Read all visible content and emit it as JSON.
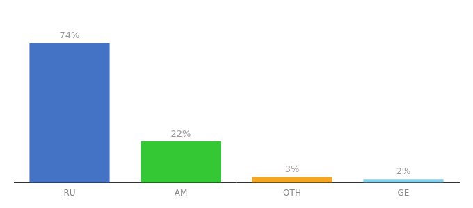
{
  "chart_data": {
    "type": "bar",
    "categories": [
      "RU",
      "AM",
      "OTH",
      "GE"
    ],
    "values": [
      74,
      22,
      3,
      2
    ],
    "value_labels": [
      "74%",
      "22%",
      "3%",
      "2%"
    ],
    "colors": [
      "#4472C4",
      "#34C934",
      "#F4A620",
      "#87CEEB"
    ],
    "ylim": [
      0,
      88
    ],
    "data_labels": true,
    "tick_labels": "x",
    "grid": false
  }
}
